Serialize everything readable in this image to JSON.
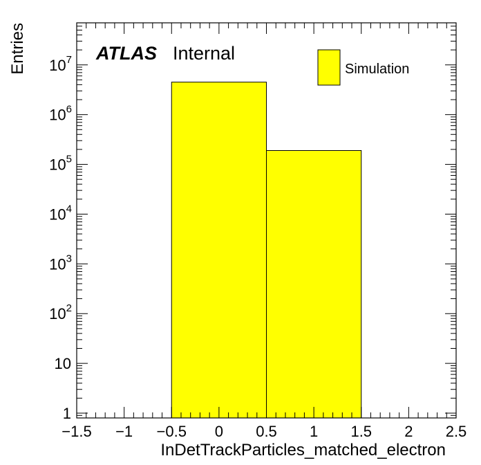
{
  "chart_data": {
    "type": "bar",
    "title": "",
    "xlabel": "InDetTrackParticles_matched_electron",
    "ylabel": "Entries",
    "xlim": [
      -1.5,
      2.5
    ],
    "ylim": [
      0.8,
      70000000
    ],
    "yscale": "log",
    "grid": false,
    "legend_placement": "top-right",
    "bins": [
      {
        "x_low": -0.5,
        "x_high": 0.5,
        "value": 4500000
      },
      {
        "x_low": 0.5,
        "x_high": 1.5,
        "value": 190000
      }
    ],
    "series": [
      {
        "name": "Simulation",
        "color": "#ffff00"
      }
    ],
    "x_ticks": [
      {
        "value": -1.5,
        "label": "−1.5"
      },
      {
        "value": -1,
        "label": "−1"
      },
      {
        "value": -0.5,
        "label": "−0.5"
      },
      {
        "value": 0,
        "label": "0"
      },
      {
        "value": 0.5,
        "label": "0.5"
      },
      {
        "value": 1,
        "label": "1"
      },
      {
        "value": 1.5,
        "label": "1.5"
      },
      {
        "value": 2,
        "label": "2"
      },
      {
        "value": 2.5,
        "label": "2.5"
      }
    ],
    "y_ticks": [
      {
        "value": 1,
        "base": "1",
        "exp": ""
      },
      {
        "value": 10,
        "base": "10",
        "exp": ""
      },
      {
        "value": 100,
        "base": "10",
        "exp": "2"
      },
      {
        "value": 1000,
        "base": "10",
        "exp": "3"
      },
      {
        "value": 10000,
        "base": "10",
        "exp": "4"
      },
      {
        "value": 100000,
        "base": "10",
        "exp": "5"
      },
      {
        "value": 1000000,
        "base": "10",
        "exp": "6"
      },
      {
        "value": 10000000,
        "base": "10",
        "exp": "7"
      }
    ]
  },
  "label": {
    "experiment": "ATLAS",
    "status": "Internal"
  },
  "legend": {
    "entry": "Simulation"
  },
  "colors": {
    "fill": "#ffff00",
    "line": "#000000"
  }
}
